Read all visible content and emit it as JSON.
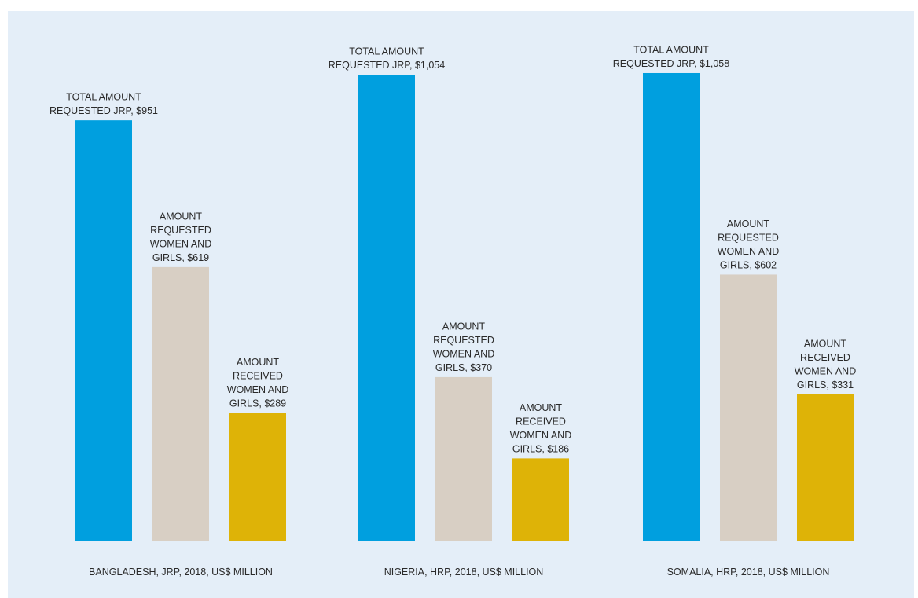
{
  "chart_data": {
    "type": "bar",
    "unit": "US$ million",
    "colors": {
      "total_requested": "#009fdf",
      "requested_women_girls": "#d8cfc4",
      "received_women_girls": "#deb307",
      "background": "#e4eef8"
    },
    "groups": [
      {
        "label": "BANGLADESH, JRP, 2018, US$ MILLION",
        "bars": [
          {
            "series": "total_requested",
            "value": 951,
            "label": [
              "TOTAL AMOUNT",
              "REQUESTED JRP, $951"
            ]
          },
          {
            "series": "requested_women_girls",
            "value": 619,
            "label": [
              "AMOUNT",
              "REQUESTED",
              "WOMEN AND",
              "GIRLS, $619"
            ]
          },
          {
            "series": "received_women_girls",
            "value": 289,
            "label": [
              "AMOUNT",
              "RECEIVED",
              "WOMEN AND",
              "GIRLS, $289"
            ]
          }
        ]
      },
      {
        "label": "NIGERIA, HRP, 2018, US$ MILLION",
        "bars": [
          {
            "series": "total_requested",
            "value": 1054,
            "label": [
              "TOTAL AMOUNT",
              "REQUESTED JRP, $1,054"
            ]
          },
          {
            "series": "requested_women_girls",
            "value": 370,
            "label": [
              "AMOUNT",
              "REQUESTED",
              "WOMEN AND",
              "GIRLS, $370"
            ]
          },
          {
            "series": "received_women_girls",
            "value": 186,
            "label": [
              "AMOUNT",
              "RECEIVED",
              "WOMEN AND",
              "GIRLS, $186"
            ]
          }
        ]
      },
      {
        "label": "SOMALIA, HRP, 2018, US$ MILLION",
        "bars": [
          {
            "series": "total_requested",
            "value": 1058,
            "label": [
              "TOTAL AMOUNT",
              "REQUESTED JRP, $1,058"
            ]
          },
          {
            "series": "requested_women_girls",
            "value": 602,
            "label": [
              "AMOUNT",
              "REQUESTED",
              "WOMEN AND",
              "GIRLS, $602"
            ]
          },
          {
            "series": "received_women_girls",
            "value": 331,
            "label": [
              "AMOUNT",
              "RECEIVED",
              "WOMEN AND",
              "GIRLS, $331"
            ]
          }
        ]
      }
    ]
  }
}
